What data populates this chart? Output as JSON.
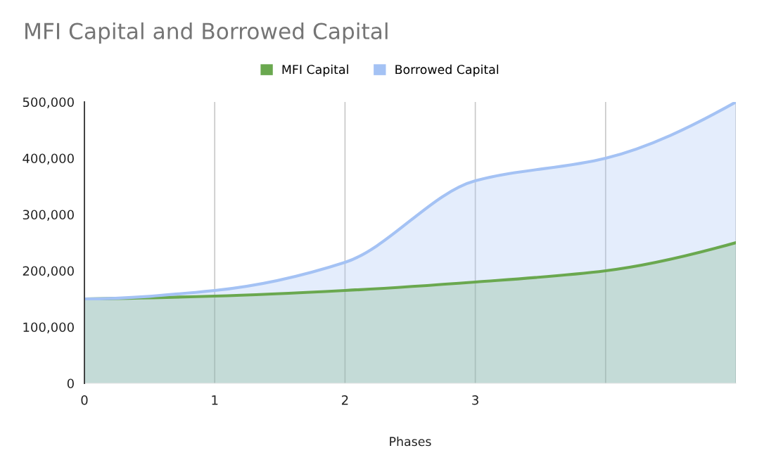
{
  "chart_data": {
    "type": "area",
    "title": "MFI Capital and Borrowed Capital",
    "xlabel": "Phases",
    "x": [
      0,
      1,
      2,
      3,
      4,
      5
    ],
    "series": [
      {
        "name": "MFI Capital",
        "color": "#6aa84f",
        "values": [
          150000,
          155000,
          165000,
          180000,
          200000,
          250000
        ]
      },
      {
        "name": "Borrowed Capital",
        "color": "#a4c2f4",
        "values": [
          150000,
          165000,
          215000,
          360000,
          400000,
          500000
        ]
      }
    ],
    "xlim": [
      0,
      5
    ],
    "xticks": [
      0,
      1,
      2,
      3,
      {
        "value": 4,
        "label": null
      },
      {
        "value": 5,
        "label": null
      }
    ],
    "ylim": [
      0,
      500000
    ],
    "yticks": [
      0,
      {
        "value": 100000,
        "label": "100,000"
      },
      {
        "value": 200000,
        "label": "200,000"
      },
      {
        "value": 300000,
        "label": "300,000"
      },
      {
        "value": 400000,
        "label": "400,000"
      },
      {
        "value": 500000,
        "label": "500,000"
      }
    ],
    "grid": "x",
    "legend": "top"
  }
}
